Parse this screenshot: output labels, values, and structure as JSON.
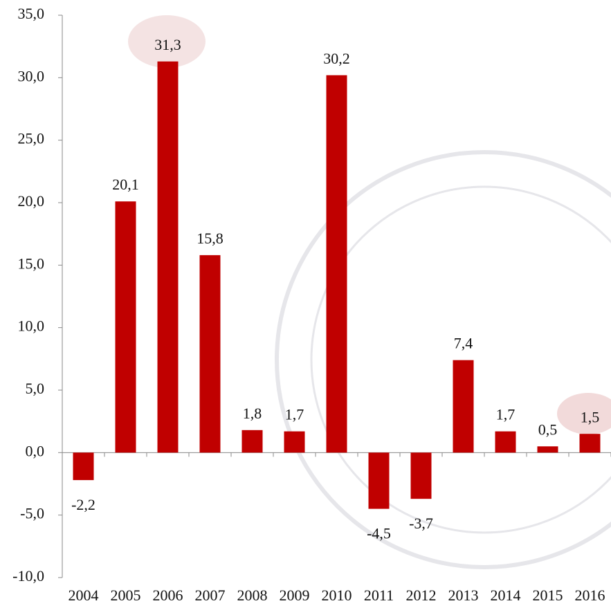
{
  "chart_data": {
    "type": "bar",
    "categories": [
      "2004",
      "2005",
      "2006",
      "2007",
      "2008",
      "2009",
      "2010",
      "2011",
      "2012",
      "2013",
      "2014",
      "2015",
      "2016"
    ],
    "values": [
      -2.2,
      20.1,
      31.3,
      15.8,
      1.8,
      1.7,
      30.2,
      -4.5,
      -3.7,
      7.4,
      1.7,
      0.5,
      1.5
    ],
    "value_labels": [
      "-2,2",
      "20,1",
      "31,3",
      "15,8",
      "1,8",
      "1,7",
      "30,2",
      "-4,5",
      "-3,7",
      "7,4",
      "1,7",
      "0,5",
      "1,5"
    ],
    "color": "#c00000",
    "ylim": [
      -10,
      35
    ],
    "yticks": [
      {
        "value": -10,
        "label": "-10,0"
      },
      {
        "value": -5,
        "label": "-5,0"
      },
      {
        "value": 0,
        "label": "0,0"
      },
      {
        "value": 5,
        "label": "5,0"
      },
      {
        "value": 10,
        "label": "10,0"
      },
      {
        "value": 15,
        "label": "15,0"
      },
      {
        "value": 20,
        "label": "20,0"
      },
      {
        "value": 25,
        "label": "25,0"
      },
      {
        "value": 30,
        "label": "30,0"
      },
      {
        "value": 35,
        "label": "35,0"
      }
    ],
    "grid": false
  }
}
